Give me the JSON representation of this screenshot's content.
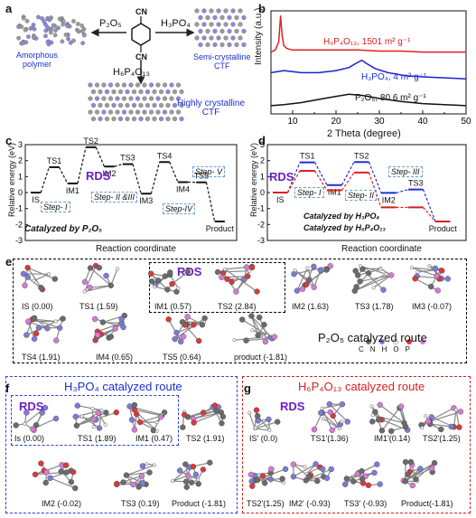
{
  "panel_a": {
    "label": "a",
    "reagent_left": "P₂O₅",
    "reagent_right": "H₃PO₄",
    "reagent_bottom": "H₆P₄O₁₃",
    "cn_top": "CN",
    "cn_bottom": "CN",
    "amorphous": "Amorphous\npolymer",
    "semi": "Semi-crystalline\nCTF",
    "highly": "Highly crystalline\nCTF"
  },
  "panel_b": {
    "label": "b",
    "chart_data": {
      "type": "line",
      "xlabel": "2 Theta (degree)",
      "ylabel": "Intensity (a.u.)",
      "xlim": [
        5,
        50
      ],
      "x_ticks": [
        "5",
        "10",
        "15",
        "20",
        "25",
        "30",
        "35",
        "40",
        "45",
        "50"
      ],
      "series": [
        {
          "name": "H₆P₄O₁₃, 1501 m² g⁻¹",
          "color": "#e02020",
          "x": [
            5,
            6,
            6.8,
            7.2,
            7.6,
            8,
            8.5,
            9,
            10,
            12,
            15,
            20,
            25,
            30,
            35,
            40,
            45,
            50
          ],
          "y": [
            0.6,
            0.62,
            0.7,
            0.95,
            0.75,
            0.66,
            0.64,
            0.63,
            0.62,
            0.62,
            0.62,
            0.62,
            0.62,
            0.61,
            0.61,
            0.6,
            0.6,
            0.6
          ]
        },
        {
          "name": "H₃PO₄, 4 m² g⁻¹",
          "color": "#2020d0",
          "x": [
            5,
            8,
            12,
            16,
            20,
            23,
            25,
            26,
            27,
            29,
            32,
            36,
            40,
            45,
            50
          ],
          "y": [
            0.4,
            0.42,
            0.4,
            0.4,
            0.42,
            0.45,
            0.5,
            0.52,
            0.49,
            0.44,
            0.4,
            0.37,
            0.36,
            0.35,
            0.34
          ]
        },
        {
          "name": "P₂O₅, 80.6 m² g⁻¹",
          "color": "#111111",
          "x": [
            5,
            8,
            12,
            16,
            20,
            23,
            26,
            30,
            35,
            40,
            45,
            50
          ],
          "y": [
            0.08,
            0.09,
            0.11,
            0.14,
            0.17,
            0.19,
            0.18,
            0.15,
            0.12,
            0.1,
            0.09,
            0.08
          ]
        }
      ]
    }
  },
  "panel_c": {
    "label": "c",
    "ylabel": "Relative energy (eV)",
    "xlabel": "Reaction coordinate",
    "y_ticks": [
      "3",
      "2",
      "1",
      "0",
      "-1",
      "-2",
      "-3"
    ],
    "caption": "Catalyzed by P₂O₅",
    "rds": "RDS",
    "steps": [
      "Step- I",
      "Step- II &III",
      "Step-IV",
      "Step- V"
    ],
    "chart_data": {
      "type": "line",
      "states": [
        "IS",
        "TS1",
        "IM1",
        "TS2",
        "IM2",
        "TS3",
        "IM3",
        "TS4",
        "IM4",
        "TS5",
        "Product"
      ],
      "values": [
        0.0,
        1.59,
        0.57,
        2.84,
        1.63,
        1.78,
        -0.07,
        1.91,
        0.65,
        0.64,
        -1.81
      ]
    }
  },
  "panel_d": {
    "label": "d",
    "ylabel": "Relative energy (eV)",
    "xlabel": "Reaction coordinate",
    "y_ticks": [
      "3",
      "2",
      "1",
      "0",
      "-1",
      "-2",
      "-3"
    ],
    "rds": "RDS",
    "steps": [
      "Step- I",
      "Step- II",
      "Step- III"
    ],
    "legend_1": "Catalyzed by H₃PO₄",
    "legend_2": "Catalyzed by H₆P₄O₁₃",
    "chart_data": {
      "type": "line",
      "states": [
        "IS",
        "TS1",
        "IM1",
        "TS2",
        "IM2",
        "TS3",
        "Product"
      ],
      "series": [
        {
          "name": "Catalyzed by H₃PO₄",
          "color": "#1b2fd6",
          "values": [
            0.0,
            1.89,
            0.47,
            1.91,
            -0.02,
            0.19,
            -1.81
          ]
        },
        {
          "name": "Catalyzed by H₆P₄O₁₃",
          "color": "#d62020",
          "values": [
            0.0,
            1.36,
            0.14,
            1.25,
            -0.93,
            -0.93,
            -1.81
          ]
        }
      ],
      "labels_extra": [
        "IS'",
        "TS1'",
        "IM1'",
        "TS2'",
        "IM2'",
        "TS3'"
      ]
    }
  },
  "panel_e": {
    "label": "e",
    "rds": "RDS",
    "route": "P₂O₅ catalyzed route",
    "legend_atoms": [
      "C",
      "N",
      "H",
      "O",
      "P"
    ],
    "row1": [
      "IS (0.00)",
      "TS1 (1.59)",
      "IM1 (0.57)",
      "TS2 (2.84)",
      "IM2 (1.63)",
      "TS3 (1.78)",
      "IM3 (-0.07)"
    ],
    "row2": [
      "TS4 (1.91)",
      "IM4 (0.65)",
      "TS5 (0.64)",
      "product (-1.81)"
    ]
  },
  "panel_f": {
    "label": "f",
    "route": "H₃PO₄ catalyzed route",
    "rds": "RDS",
    "row1": [
      "Is (0.00)",
      "TS1 (1.89)",
      "IM1 (0.47)",
      "TS2 (1.91)"
    ],
    "row2": [
      "IM2 (-0.02)",
      "TS3 (0.19)",
      "Product (-1.81)"
    ]
  },
  "panel_g": {
    "label": "g",
    "route": "H₆P₄O₁₃ catalyzed route",
    "rds": "RDS",
    "row1": [
      "IS' (0.0)",
      "TS1'(1.36)",
      "IM1'(0.14)",
      "TS2'(1.25)"
    ],
    "row2": [
      "TS2'(1.25)",
      "IM2' (-0.93)",
      "TS3' (-0.93)",
      "Product(-1.81)"
    ]
  },
  "colors": {
    "carbon": "#6b6b6b",
    "nitrogen": "#7c7cd6",
    "hydrogen": "#f2f2f2",
    "oxygen": "#d93a3a",
    "phosphorus": "#d67ad6"
  }
}
